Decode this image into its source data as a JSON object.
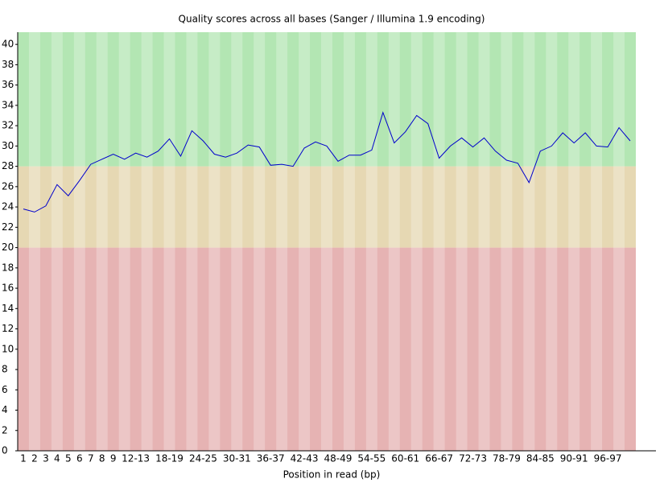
{
  "chart_data": {
    "type": "line",
    "title": "Quality scores across all bases (Sanger / Illumina 1.9 encoding)",
    "x_label": "Position in read (bp)",
    "categories": [
      "1",
      "2",
      "3",
      "4",
      "5",
      "6",
      "7",
      "8",
      "9",
      null,
      "12-13",
      null,
      null,
      "18-19",
      null,
      null,
      "24-25",
      null,
      null,
      "30-31",
      null,
      null,
      "36-37",
      null,
      null,
      "42-43",
      null,
      null,
      "48-49",
      null,
      null,
      "54-55",
      null,
      null,
      "60-61",
      null,
      null,
      "66-67",
      null,
      null,
      "72-73",
      null,
      null,
      "78-79",
      null,
      null,
      "84-85",
      null,
      null,
      "90-91",
      null,
      null,
      "96-97",
      null,
      null
    ],
    "series": [
      {
        "color": "#0000cc",
        "values": [
          23.8,
          23.5,
          24.1,
          26.2,
          25.1,
          26.6,
          28.2,
          28.7,
          29.2,
          28.7,
          29.3,
          28.9,
          29.5,
          30.7,
          29.0,
          31.5,
          30.5,
          29.2,
          28.9,
          29.3,
          30.1,
          29.9,
          28.1,
          28.2,
          28.0,
          29.8,
          30.4,
          30.0,
          28.5,
          29.1,
          29.1,
          29.6,
          33.3,
          30.3,
          31.4,
          33.0,
          32.2,
          28.8,
          30.0,
          30.8,
          29.9,
          30.8,
          29.5,
          28.6,
          28.3,
          26.4,
          29.5,
          30.0,
          31.3,
          30.3,
          31.3,
          30.0,
          29.9,
          31.8,
          30.5
        ]
      }
    ],
    "ylim": [
      0,
      41.2
    ],
    "yticks": [
      0,
      2,
      4,
      6,
      8,
      10,
      12,
      14,
      16,
      18,
      20,
      22,
      24,
      26,
      28,
      30,
      32,
      34,
      36,
      38,
      40
    ],
    "bands": [
      {
        "from": 0,
        "to": 20,
        "color": "#e6b3b3"
      },
      {
        "from": 20,
        "to": 28,
        "color": "#e6d8b3"
      },
      {
        "from": 28,
        "to": 41.2,
        "color": "#b3e6b3"
      }
    ]
  }
}
